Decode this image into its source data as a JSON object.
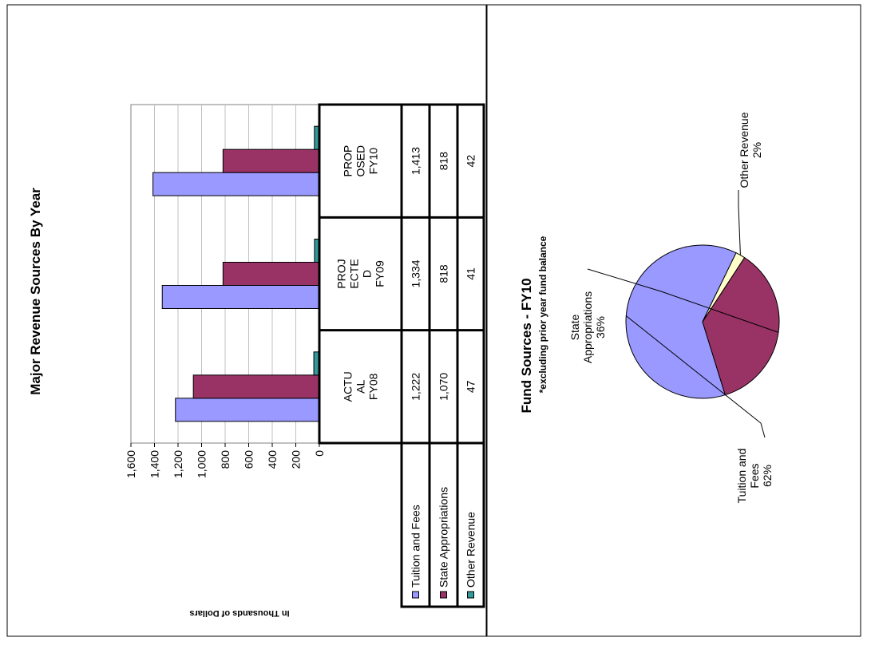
{
  "chart_data": [
    {
      "type": "bar",
      "title": "Major Revenue Sources By Year",
      "ylabel": "In Thousands of Dollars",
      "ylim": [
        0,
        1600
      ],
      "yticks": [
        "0",
        "200",
        "400",
        "600",
        "800",
        "1,000",
        "1,200",
        "1,400",
        "1,600"
      ],
      "grid": true,
      "legend_placement": "left of data table",
      "categories": [
        "ACTU AL FY08",
        "PROJ ECTE D FY09",
        "PROP OSED FY10"
      ],
      "category_label_lines": [
        [
          "ACTU",
          "AL",
          "FY08"
        ],
        [
          "PROJ",
          "ECTE",
          "D",
          "FY09"
        ],
        [
          "PROP",
          "OSED",
          "FY10"
        ]
      ],
      "series": [
        {
          "name": "Tuition and Fees",
          "color": "#9999ff",
          "values": [
            1222,
            1334,
            1413
          ],
          "labels": [
            "1,222",
            "1,334",
            "1,413"
          ]
        },
        {
          "name": "State Appropriations",
          "color": "#993366",
          "values": [
            1070,
            818,
            818
          ],
          "labels": [
            "1,070",
            "818",
            "818"
          ]
        },
        {
          "name": "Other Revenue",
          "color": "#339999",
          "values": [
            47,
            41,
            42
          ],
          "labels": [
            "47",
            "41",
            "42"
          ]
        }
      ]
    },
    {
      "type": "pie",
      "title": "Fund Sources - FY10",
      "subtitle": "*excluding prior year fund balance",
      "slices": [
        {
          "name": "Tuition and Fees",
          "percent_label": "62%",
          "value": 62,
          "color": "#9999ff",
          "label_lines": [
            "Tuition and",
            "Fees",
            "62%"
          ]
        },
        {
          "name": "State Appropriations",
          "percent_label": "36%",
          "value": 36,
          "color": "#993366",
          "label_lines": [
            "State",
            "Appropriations",
            "36%"
          ]
        },
        {
          "name": "Other Revenue",
          "percent_label": "2%",
          "value": 2,
          "color": "#ffffcc",
          "label_lines": [
            "Other Revenue",
            "2%"
          ]
        }
      ]
    }
  ]
}
